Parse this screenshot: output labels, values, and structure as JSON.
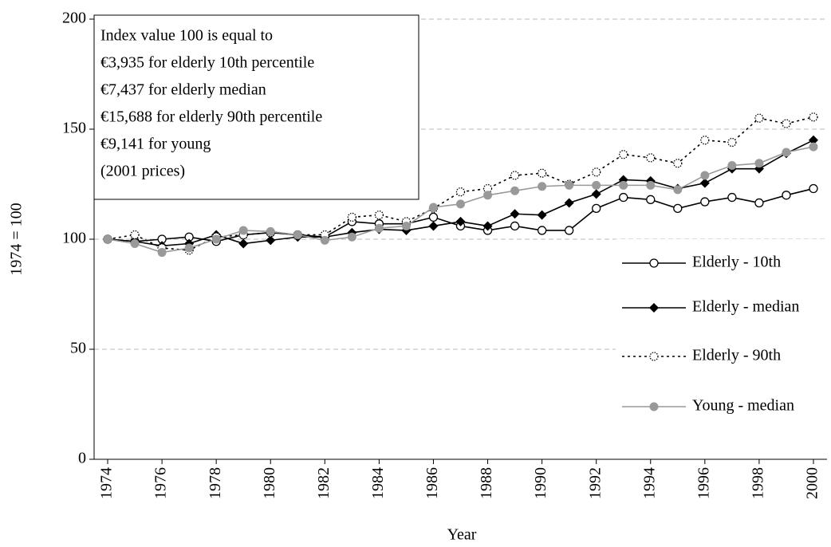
{
  "chart_data": {
    "type": "line",
    "x_label": "Year",
    "y_label": "1974 = 100",
    "annotation": [
      "Index value 100 is equal to",
      "€3,935  for elderly 10th percentile",
      "€7,437 for elderly median",
      "€15,688 for elderly 90th percentile",
      "€9,141 for young",
      "(2001 prices)"
    ],
    "x": [
      1974,
      1975,
      1976,
      1977,
      1978,
      1979,
      1980,
      1981,
      1982,
      1983,
      1984,
      1985,
      1986,
      1987,
      1988,
      1989,
      1990,
      1991,
      1992,
      1993,
      1994,
      1995,
      1996,
      1997,
      1998,
      1999,
      2000
    ],
    "xlim": [
      1973.5,
      2000.5
    ],
    "xticks": [
      1974,
      1976,
      1978,
      1980,
      1982,
      1984,
      1986,
      1988,
      1990,
      1992,
      1994,
      1996,
      1998,
      2000
    ],
    "ylim": [
      0,
      200
    ],
    "yticks": [
      0,
      50,
      100,
      150,
      200
    ],
    "grid": true,
    "series": [
      {
        "name": "Elderly - 10th",
        "color": "#000000",
        "marker": "open-circle",
        "dash": "solid",
        "values": [
          100,
          99,
          100,
          101,
          99,
          102,
          103,
          102,
          101,
          108,
          107,
          107,
          110,
          106,
          104,
          106,
          104,
          104,
          114,
          119,
          118,
          114,
          117,
          119,
          116.5,
          120,
          123
        ]
      },
      {
        "name": "Elderly - median",
        "color": "#000000",
        "marker": "diamond",
        "dash": "solid",
        "values": [
          100,
          99,
          97,
          98,
          102,
          98,
          99.5,
          101,
          101,
          103,
          104.5,
          104,
          106,
          108,
          106,
          111.5,
          111,
          116.5,
          120.5,
          127,
          126.5,
          123,
          125.5,
          132,
          132,
          139,
          145
        ]
      },
      {
        "name": "Elderly - 90th",
        "color": "#000000",
        "marker": "dotted-circle",
        "dash": "dotted",
        "values": [
          100,
          102,
          96,
          95,
          101,
          102,
          103,
          102,
          102,
          110,
          111,
          108,
          114,
          121.5,
          123,
          129,
          130,
          125,
          130.5,
          138.5,
          137,
          134.5,
          145,
          144,
          155,
          152.5,
          155.5
        ]
      },
      {
        "name": "Young - median",
        "color": "#999999",
        "marker": "filled-circle",
        "dash": "solid",
        "values": [
          100,
          98,
          94,
          96,
          100,
          104,
          103.5,
          102,
          99.5,
          101,
          105,
          106,
          114.5,
          116,
          120,
          122,
          124,
          124.5,
          124.5,
          124.5,
          124.5,
          122.5,
          129,
          133.5,
          134.5,
          139.5,
          142
        ]
      }
    ]
  }
}
